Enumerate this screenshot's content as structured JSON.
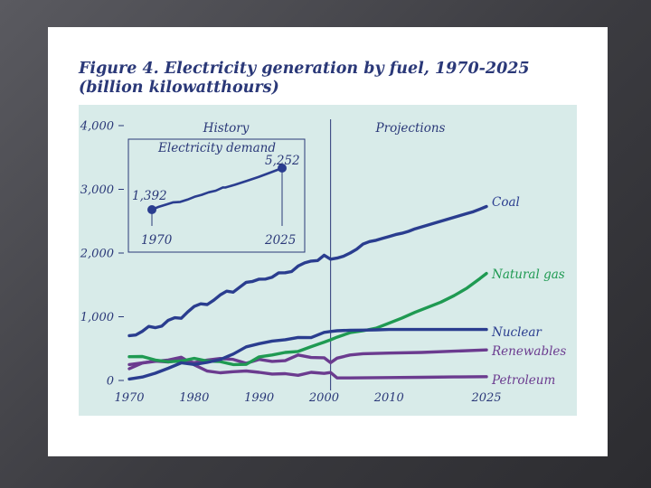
{
  "title": {
    "line1": "Figure 4. Electricity generation by fuel, 1970-2025",
    "line2": "(billion kilowatthours)"
  },
  "colors": {
    "panel": "#d8ebe9",
    "text": "#2a3878",
    "coal": "#2a3d8f",
    "natural_gas": "#1f9a52",
    "nuclear": "#2a3d8f",
    "renewables": "#6b3b8f",
    "petroleum": "#6b3b8f",
    "divider": "#2a3878"
  },
  "chart_data": [
    {
      "type": "line",
      "title": "Electricity generation by fuel, 1970-2025",
      "xlabel": "",
      "ylabel": "billion kilowatthours",
      "xlim": [
        1970,
        2025
      ],
      "ylim": [
        0,
        4000
      ],
      "x_ticks": [
        1970,
        1980,
        1990,
        2000,
        2010,
        2025
      ],
      "x_tick_labels": [
        "1970",
        "1980",
        "1990",
        "2000",
        "2010",
        "2025"
      ],
      "y_ticks": [
        0,
        1000,
        2000,
        3000,
        4000
      ],
      "y_tick_labels": [
        "0",
        "1,000",
        "2,000",
        "3,000",
        "4,000"
      ],
      "region_divider_x": 2001,
      "region_labels": [
        "History",
        "Projections"
      ],
      "series": [
        {
          "name": "Coal",
          "color_key": "coal",
          "x": [
            1970,
            1971,
            1972,
            1973,
            1974,
            1975,
            1976,
            1977,
            1978,
            1979,
            1980,
            1981,
            1982,
            1983,
            1984,
            1985,
            1986,
            1987,
            1988,
            1989,
            1990,
            1991,
            1992,
            1993,
            1994,
            1995,
            1996,
            1997,
            1998,
            1999,
            2000,
            2001,
            2002,
            2003,
            2004,
            2005,
            2006,
            2007,
            2008,
            2009,
            2010,
            2011,
            2012,
            2013,
            2014,
            2015,
            2016,
            2017,
            2018,
            2019,
            2020,
            2021,
            2022,
            2023,
            2024,
            2025
          ],
          "values": [
            704,
            713,
            771,
            848,
            828,
            853,
            944,
            985,
            976,
            1075,
            1162,
            1203,
            1192,
            1259,
            1342,
            1402,
            1386,
            1464,
            1541,
            1554,
            1590,
            1591,
            1621,
            1690,
            1691,
            1709,
            1796,
            1845,
            1874,
            1882,
            1966,
            1904,
            1920,
            1950,
            2000,
            2060,
            2140,
            2180,
            2200,
            2230,
            2260,
            2290,
            2310,
            2340,
            2380,
            2410,
            2440,
            2470,
            2500,
            2530,
            2560,
            2590,
            2620,
            2650,
            2690,
            2730
          ]
        },
        {
          "name": "Natural gas",
          "color_key": "natural_gas",
          "x": [
            1970,
            1972,
            1974,
            1976,
            1978,
            1980,
            1982,
            1984,
            1986,
            1988,
            1990,
            1992,
            1994,
            1996,
            1998,
            2000,
            2001,
            2002,
            2004,
            2006,
            2008,
            2010,
            2012,
            2014,
            2016,
            2018,
            2020,
            2022,
            2024,
            2025
          ],
          "values": [
            373,
            376,
            320,
            294,
            305,
            346,
            305,
            297,
            249,
            253,
            370,
            400,
            440,
            455,
            530,
            601,
            639,
            680,
            750,
            780,
            820,
            900,
            980,
            1070,
            1150,
            1230,
            1330,
            1450,
            1600,
            1680
          ]
        },
        {
          "name": "Nuclear",
          "color_key": "nuclear",
          "x": [
            1970,
            1972,
            1974,
            1976,
            1978,
            1980,
            1982,
            1984,
            1986,
            1988,
            1990,
            1992,
            1994,
            1996,
            1998,
            2000,
            2001,
            2002,
            2004,
            2006,
            2008,
            2010,
            2015,
            2020,
            2025
          ],
          "values": [
            22,
            54,
            114,
            191,
            276,
            251,
            283,
            328,
            414,
            527,
            577,
            619,
            640,
            675,
            673,
            754,
            769,
            780,
            788,
            790,
            795,
            800,
            800,
            800,
            800
          ]
        },
        {
          "name": "Renewables",
          "color_key": "renewables",
          "x": [
            1970,
            1972,
            1974,
            1976,
            1978,
            1980,
            1982,
            1984,
            1986,
            1988,
            1990,
            1992,
            1994,
            1996,
            1998,
            2000,
            2001,
            2002,
            2004,
            2006,
            2010,
            2015,
            2020,
            2025
          ],
          "values": [
            250,
            275,
            305,
            290,
            320,
            280,
            320,
            345,
            330,
            270,
            330,
            300,
            310,
            400,
            360,
            356,
            280,
            350,
            400,
            420,
            430,
            440,
            460,
            480
          ]
        },
        {
          "name": "Petroleum",
          "color_key": "petroleum",
          "x": [
            1970,
            1972,
            1974,
            1976,
            1978,
            1980,
            1982,
            1984,
            1986,
            1988,
            1990,
            1992,
            1994,
            1996,
            1998,
            2000,
            2001,
            2002,
            2004,
            2010,
            2015,
            2020,
            2025
          ],
          "values": [
            184,
            274,
            301,
            320,
            365,
            246,
            147,
            120,
            137,
            149,
            127,
            100,
            106,
            81,
            128,
            111,
            125,
            40,
            40,
            45,
            50,
            55,
            60
          ]
        }
      ]
    },
    {
      "type": "line",
      "title": "Electricity demand",
      "xlim": [
        1970,
        2025
      ],
      "x_tick_labels": [
        "1970",
        "2025"
      ],
      "start_label": "1,392",
      "end_label": "5,252",
      "series": [
        {
          "name": "Electricity demand",
          "x": [
            1970,
            1973,
            1976,
            1979,
            1982,
            1985,
            1988,
            1991,
            1994,
            1997,
            2000,
            2001,
            2005,
            2010,
            2015,
            2020,
            2025
          ],
          "values": [
            1392,
            1670,
            1860,
            2070,
            2110,
            2320,
            2580,
            2770,
            3000,
            3150,
            3460,
            3450,
            3700,
            4050,
            4420,
            4830,
            5252
          ]
        }
      ]
    }
  ]
}
